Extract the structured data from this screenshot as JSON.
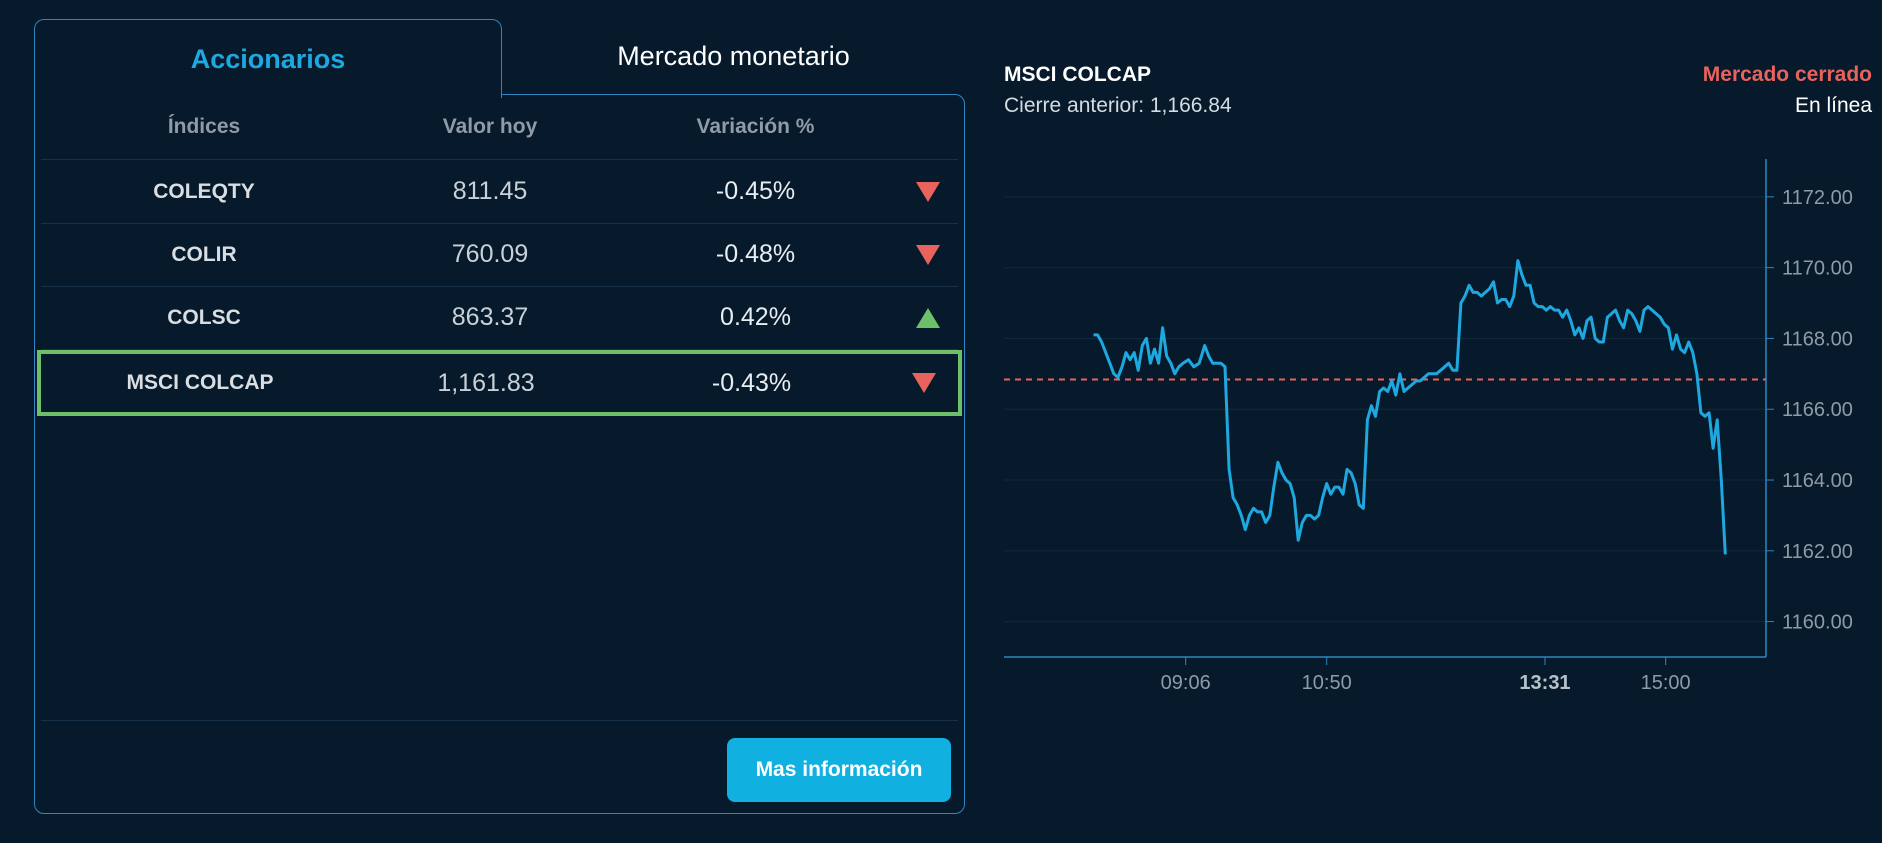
{
  "tabs": {
    "active": "Accionarios",
    "inactive": "Mercado monetario"
  },
  "table": {
    "headers": {
      "index": "Índices",
      "value": "Valor hoy",
      "change": "Variación %"
    },
    "rows": [
      {
        "name": "COLEQTY",
        "value": "811.45",
        "change": "-0.45%",
        "direction": "down"
      },
      {
        "name": "COLIR",
        "value": "760.09",
        "change": "-0.48%",
        "direction": "down"
      },
      {
        "name": "COLSC",
        "value": "863.37",
        "change": "0.42%",
        "direction": "up"
      },
      {
        "name": "MSCI COLCAP",
        "value": "1,161.83",
        "change": "-0.43%",
        "direction": "down",
        "selected": true
      }
    ]
  },
  "more_button": "Mas información",
  "chart_header": {
    "title": "MSCI COLCAP",
    "previous_close": "Cierre anterior: 1,166.84",
    "market_status": "Mercado cerrado",
    "mode": "En línea"
  },
  "colors": {
    "accent": "#1ea8e0",
    "down": "#e8625e",
    "up": "#6cc06a",
    "line": "#1ea8e0",
    "background": "#061a2b"
  },
  "chart_data": {
    "type": "line",
    "title": "MSCI COLCAP",
    "xlabel": "",
    "ylabel": "",
    "ylim": [
      1159,
      1172.9
    ],
    "y_ticks": [
      "1160.00",
      "1162.00",
      "1164.00",
      "1166.00",
      "1168.00",
      "1170.00",
      "1172.00"
    ],
    "x_ticks": [
      {
        "label": "09:06",
        "t": 546,
        "bold": false
      },
      {
        "label": "10:50",
        "t": 650,
        "bold": false
      },
      {
        "label": "13:31",
        "t": 811,
        "bold": true
      },
      {
        "label": "15:00",
        "t": 900,
        "bold": false
      }
    ],
    "reference_line": 1166.84,
    "series": [
      {
        "values": [
          [
            478,
            1168.1
          ],
          [
            481,
            1168.1
          ],
          [
            484,
            1167.9
          ],
          [
            487,
            1167.6
          ],
          [
            490,
            1167.3
          ],
          [
            493,
            1167.0
          ],
          [
            496,
            1166.9
          ],
          [
            499,
            1167.2
          ],
          [
            502,
            1167.6
          ],
          [
            505,
            1167.4
          ],
          [
            508,
            1167.6
          ],
          [
            511,
            1167.1
          ],
          [
            514,
            1167.8
          ],
          [
            517,
            1168.0
          ],
          [
            520,
            1167.3
          ],
          [
            523,
            1167.7
          ],
          [
            526,
            1167.3
          ],
          [
            529,
            1168.3
          ],
          [
            532,
            1167.5
          ],
          [
            535,
            1167.3
          ],
          [
            538,
            1167.0
          ],
          [
            541,
            1167.2
          ],
          [
            544,
            1167.3
          ],
          [
            548,
            1167.4
          ],
          [
            552,
            1167.2
          ],
          [
            556,
            1167.3
          ],
          [
            560,
            1167.8
          ],
          [
            563,
            1167.5
          ],
          [
            566,
            1167.3
          ],
          [
            569,
            1167.3
          ],
          [
            572,
            1167.3
          ],
          [
            575,
            1167.2
          ],
          [
            578,
            1164.3
          ],
          [
            581,
            1163.5
          ],
          [
            584,
            1163.3
          ],
          [
            587,
            1163.0
          ],
          [
            590,
            1162.6
          ],
          [
            593,
            1163.0
          ],
          [
            596,
            1163.2
          ],
          [
            599,
            1163.1
          ],
          [
            602,
            1163.1
          ],
          [
            605,
            1162.8
          ],
          [
            608,
            1163.0
          ],
          [
            611,
            1163.8
          ],
          [
            614,
            1164.5
          ],
          [
            617,
            1164.2
          ],
          [
            620,
            1164.0
          ],
          [
            623,
            1163.9
          ],
          [
            626,
            1163.5
          ],
          [
            629,
            1162.3
          ],
          [
            632,
            1162.8
          ],
          [
            635,
            1163.0
          ],
          [
            638,
            1163.0
          ],
          [
            641,
            1162.9
          ],
          [
            644,
            1163.0
          ],
          [
            647,
            1163.5
          ],
          [
            650,
            1163.9
          ],
          [
            653,
            1163.6
          ],
          [
            656,
            1163.8
          ],
          [
            659,
            1163.8
          ],
          [
            662,
            1163.6
          ],
          [
            665,
            1164.3
          ],
          [
            668,
            1164.2
          ],
          [
            671,
            1163.9
          ],
          [
            674,
            1163.3
          ],
          [
            677,
            1163.2
          ],
          [
            680,
            1165.7
          ],
          [
            683,
            1166.1
          ],
          [
            686,
            1165.8
          ],
          [
            689,
            1166.5
          ],
          [
            692,
            1166.6
          ],
          [
            695,
            1166.5
          ],
          [
            698,
            1166.8
          ],
          [
            701,
            1166.4
          ],
          [
            704,
            1167.0
          ],
          [
            707,
            1166.5
          ],
          [
            710,
            1166.6
          ],
          [
            713,
            1166.7
          ],
          [
            716,
            1166.8
          ],
          [
            719,
            1166.8
          ],
          [
            722,
            1166.9
          ],
          [
            725,
            1167.0
          ],
          [
            728,
            1167.0
          ],
          [
            731,
            1167.0
          ],
          [
            734,
            1167.1
          ],
          [
            737,
            1167.2
          ],
          [
            740,
            1167.3
          ],
          [
            743,
            1167.1
          ],
          [
            746,
            1167.1
          ],
          [
            749,
            1169.0
          ],
          [
            752,
            1169.2
          ],
          [
            755,
            1169.5
          ],
          [
            758,
            1169.3
          ],
          [
            761,
            1169.3
          ],
          [
            764,
            1169.2
          ],
          [
            767,
            1169.3
          ],
          [
            770,
            1169.4
          ],
          [
            773,
            1169.6
          ],
          [
            776,
            1169.0
          ],
          [
            779,
            1169.1
          ],
          [
            782,
            1169.1
          ],
          [
            785,
            1168.9
          ],
          [
            788,
            1169.2
          ],
          [
            791,
            1170.2
          ],
          [
            794,
            1169.8
          ],
          [
            797,
            1169.5
          ],
          [
            800,
            1169.5
          ],
          [
            803,
            1169.0
          ],
          [
            806,
            1168.9
          ],
          [
            809,
            1168.9
          ],
          [
            812,
            1168.8
          ],
          [
            815,
            1168.9
          ],
          [
            818,
            1168.8
          ],
          [
            821,
            1168.8
          ],
          [
            824,
            1168.6
          ],
          [
            827,
            1168.8
          ],
          [
            830,
            1168.5
          ],
          [
            833,
            1168.1
          ],
          [
            836,
            1168.3
          ],
          [
            839,
            1168.0
          ],
          [
            842,
            1168.5
          ],
          [
            845,
            1168.6
          ],
          [
            848,
            1168.0
          ],
          [
            851,
            1167.9
          ],
          [
            854,
            1167.9
          ],
          [
            857,
            1168.6
          ],
          [
            860,
            1168.7
          ],
          [
            863,
            1168.8
          ],
          [
            866,
            1168.5
          ],
          [
            869,
            1168.3
          ],
          [
            872,
            1168.8
          ],
          [
            875,
            1168.7
          ],
          [
            878,
            1168.5
          ],
          [
            881,
            1168.2
          ],
          [
            884,
            1168.8
          ],
          [
            887,
            1168.9
          ],
          [
            890,
            1168.8
          ],
          [
            893,
            1168.7
          ],
          [
            896,
            1168.6
          ],
          [
            899,
            1168.4
          ],
          [
            902,
            1168.3
          ],
          [
            905,
            1167.7
          ],
          [
            908,
            1168.1
          ],
          [
            911,
            1167.7
          ],
          [
            914,
            1167.6
          ],
          [
            917,
            1167.9
          ],
          [
            920,
            1167.6
          ],
          [
            923,
            1167.0
          ],
          [
            926,
            1165.9
          ],
          [
            929,
            1165.8
          ],
          [
            932,
            1165.9
          ],
          [
            935,
            1164.9
          ],
          [
            938,
            1165.7
          ],
          [
            941,
            1164.0
          ],
          [
            944,
            1161.9
          ]
        ]
      }
    ],
    "grid": true
  }
}
